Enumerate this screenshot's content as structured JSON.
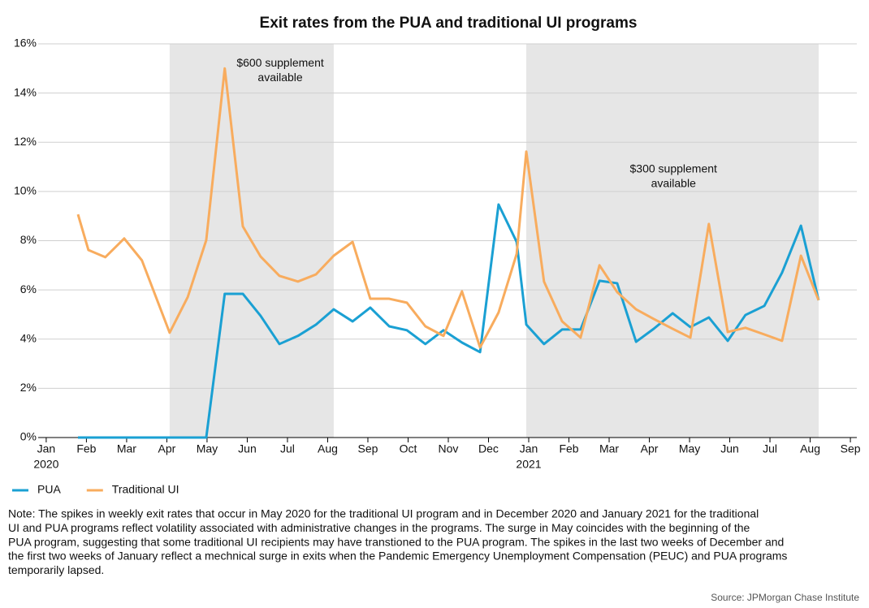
{
  "chart_data": {
    "type": "line",
    "title": "Exit rates from the PUA and traditional UI programs",
    "x": [
      0.79,
      1.05,
      1.47,
      1.94,
      2.38,
      3.07,
      3.52,
      3.98,
      4.44,
      4.89,
      5.33,
      5.8,
      6.26,
      6.71,
      7.15,
      7.62,
      8.06,
      8.53,
      8.97,
      9.43,
      9.88,
      10.34,
      10.79,
      11.25,
      11.7,
      11.94,
      12.38,
      12.83,
      13.29,
      13.76,
      14.2,
      14.67,
      15.11,
      15.58,
      16.02,
      16.48,
      16.95,
      17.39,
      17.86,
      18.3,
      18.77,
      19.21
    ],
    "series": [
      {
        "name": "PUA",
        "color": "#1aa0d3",
        "values": [
          0,
          0,
          0,
          0,
          0,
          0,
          0,
          0,
          5.84,
          5.84,
          4.95,
          3.8,
          4.13,
          4.59,
          5.21,
          4.72,
          5.28,
          4.52,
          4.36,
          3.8,
          4.36,
          3.86,
          3.47,
          9.47,
          7.95,
          4.59,
          3.8,
          4.39,
          4.39,
          6.37,
          6.27,
          3.89,
          4.42,
          5.05,
          4.49,
          4.88,
          3.93,
          4.98,
          5.35,
          6.7,
          8.61,
          5.58
        ]
      },
      {
        "name": "Traditional UI",
        "color": "#f8ac5e",
        "values": [
          9.07,
          7.62,
          7.33,
          8.09,
          7.2,
          4.26,
          5.71,
          8.02,
          15.0,
          8.58,
          7.36,
          6.57,
          6.34,
          6.63,
          7.39,
          7.95,
          5.64,
          5.64,
          5.48,
          4.52,
          4.13,
          5.94,
          3.66,
          5.08,
          7.46,
          11.62,
          6.34,
          4.72,
          4.06,
          7.0,
          5.91,
          5.21,
          4.82,
          4.42,
          4.06,
          8.68,
          4.29,
          4.46,
          4.19,
          3.93,
          7.39,
          5.58
        ]
      }
    ],
    "xlim": [
      -0.2,
      20.16
    ],
    "xticks": [
      {
        "value": 0,
        "label": "Jan"
      },
      {
        "value": 1,
        "label": "Feb"
      },
      {
        "value": 2,
        "label": "Mar"
      },
      {
        "value": 3,
        "label": "Apr"
      },
      {
        "value": 4,
        "label": "May"
      },
      {
        "value": 5,
        "label": "Jun"
      },
      {
        "value": 6,
        "label": "Jul"
      },
      {
        "value": 7,
        "label": "Aug"
      },
      {
        "value": 8,
        "label": "Sep"
      },
      {
        "value": 9,
        "label": "Oct"
      },
      {
        "value": 10,
        "label": "Nov"
      },
      {
        "value": 11,
        "label": "Dec"
      },
      {
        "value": 12,
        "label": "Jan"
      },
      {
        "value": 13,
        "label": "Feb"
      },
      {
        "value": 14,
        "label": "Mar"
      },
      {
        "value": 15,
        "label": "Apr"
      },
      {
        "value": 16,
        "label": "May"
      },
      {
        "value": 17,
        "label": "Jun"
      },
      {
        "value": 18,
        "label": "Jul"
      },
      {
        "value": 19,
        "label": "Aug"
      },
      {
        "value": 20,
        "label": "Sep"
      }
    ],
    "year_labels": [
      {
        "value": 0,
        "label": "2020"
      },
      {
        "value": 12,
        "label": "2021"
      }
    ],
    "ylim": [
      0,
      16
    ],
    "yticks": [
      {
        "value": 0,
        "label": "0%"
      },
      {
        "value": 2,
        "label": "2%"
      },
      {
        "value": 4,
        "label": "4%"
      },
      {
        "value": 6,
        "label": "6%"
      },
      {
        "value": 8,
        "label": "8%"
      },
      {
        "value": 10,
        "label": "10%"
      },
      {
        "value": 12,
        "label": "12%"
      },
      {
        "value": 14,
        "label": "14%"
      },
      {
        "value": 16,
        "label": "16%"
      }
    ],
    "grid": true,
    "shaded_regions": [
      {
        "start": 3.07,
        "end": 7.15,
        "label": [
          "$600 supplement",
          "available"
        ],
        "label_x": 5.82,
        "label_y": 15.2
      },
      {
        "start": 11.94,
        "end": 19.21,
        "label": [
          "$300 supplement",
          "available"
        ],
        "label_x": 15.6,
        "label_y": 10.9
      }
    ],
    "legend": "bottom-left",
    "note": [
      "Note: The spikes in weekly exit rates that occur in May 2020 for the traditional UI program and in December 2020 and January 2021 for the traditional",
      "UI and PUA programs reflect volatility associated with administrative changes in the programs. The surge in May coincides with the beginning of the",
      "PUA program, suggesting that some traditional UI recipients may have transtioned to the PUA program. The spikes in the last two weeks of December and",
      "the first two weeks of January reflect a mechnical surge in exits when the Pandemic Emergency Unemployment Compensation (PEUC) and PUA programs",
      "temporarily lapsed."
    ],
    "source": "Source: JPMorgan Chase Institute"
  }
}
